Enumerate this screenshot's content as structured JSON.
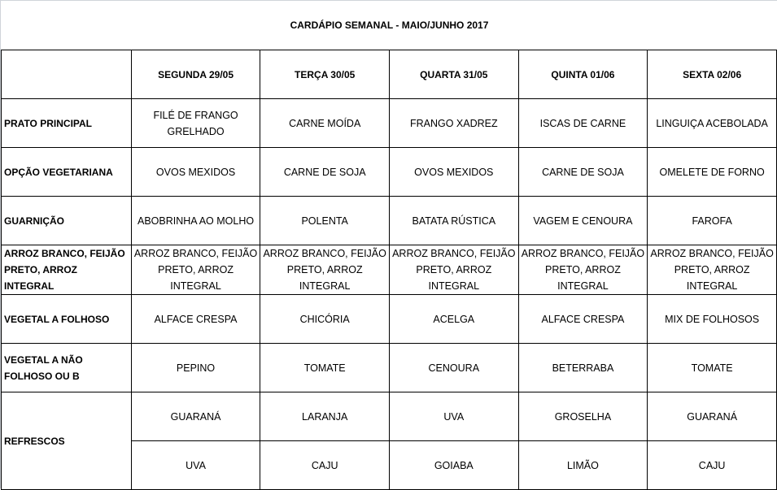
{
  "title": "CARDÁPIO SEMANAL - MAIO/JUNHO 2017",
  "days": [
    "SEGUNDA  29/05",
    "TERÇA  30/05",
    "QUARTA 31/05",
    "QUINTA 01/06",
    "SEXTA 02/06"
  ],
  "rows": [
    {
      "label": "PRATO PRINCIPAL",
      "cells": [
        "FILÉ DE FRANGO GRELHADO",
        "CARNE MOÍDA",
        "FRANGO XADREZ",
        "ISCAS DE CARNE",
        "LINGUIÇA ACEBOLADA"
      ]
    },
    {
      "label": "OPÇÃO VEGETARIANA",
      "cells": [
        "OVOS MEXIDOS",
        "CARNE DE SOJA",
        "OVOS MEXIDOS",
        "CARNE DE SOJA",
        "OMELETE DE FORNO"
      ]
    },
    {
      "label": "GUARNIÇÃO",
      "cells": [
        "ABOBRINHA AO MOLHO",
        "POLENTA",
        "BATATA RÚSTICA",
        "VAGEM E CENOURA",
        "FAROFA"
      ]
    },
    {
      "label": "ARROZ BRANCO, FEIJÃO PRETO, ARROZ INTEGRAL",
      "cells": [
        "ARROZ BRANCO, FEIJÃO PRETO, ARROZ INTEGRAL",
        "ARROZ BRANCO, FEIJÃO PRETO, ARROZ INTEGRAL",
        "ARROZ BRANCO, FEIJÃO PRETO, ARROZ INTEGRAL",
        "ARROZ BRANCO, FEIJÃO PRETO, ARROZ INTEGRAL",
        "ARROZ BRANCO, FEIJÃO PRETO, ARROZ INTEGRAL"
      ]
    },
    {
      "label": "VEGETAL A FOLHOSO",
      "cells": [
        "ALFACE CRESPA",
        "CHICÓRIA",
        "ACELGA",
        "ALFACE CRESPA",
        "MIX DE FOLHOSOS"
      ]
    },
    {
      "label": "VEGETAL A NÃO FOLHOSO OU B",
      "cells": [
        "PEPINO",
        "TOMATE",
        "CENOURA",
        "BETERRABA",
        "TOMATE"
      ]
    }
  ],
  "refrescos": {
    "label": "REFRESCOS",
    "row1": [
      "GUARANÁ",
      "LARANJA",
      "UVA",
      "GROSELHA",
      "GUARANÁ"
    ],
    "row2": [
      "UVA",
      "CAJU",
      "GOIABA",
      "LIMÃO",
      "CAJU"
    ]
  }
}
